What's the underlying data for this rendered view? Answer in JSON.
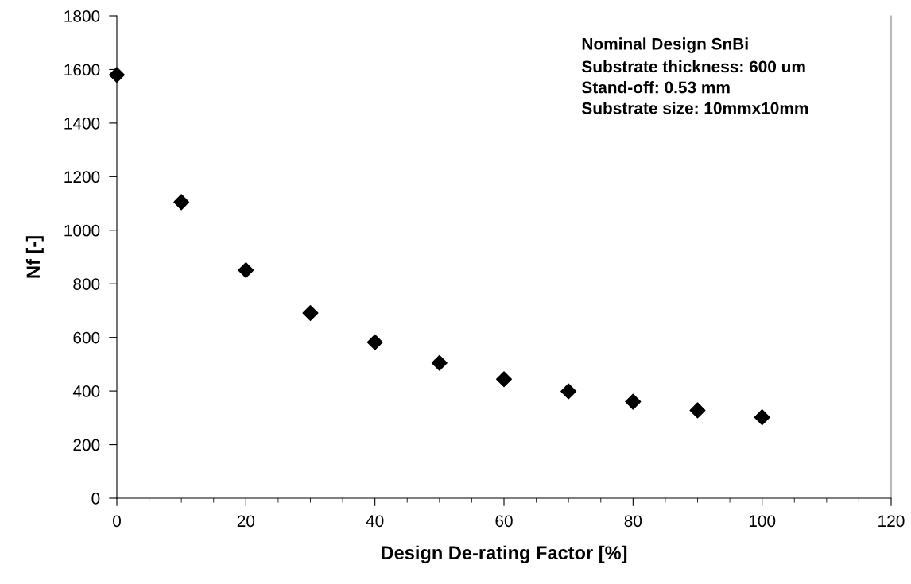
{
  "chart_data": {
    "type": "scatter",
    "xlabel": "Design De-rating Factor [%]",
    "ylabel": "Nf [-]",
    "x": [
      0,
      10,
      20,
      30,
      40,
      50,
      60,
      70,
      80,
      90,
      100
    ],
    "series": [
      {
        "color": "#000000",
        "values": [
          1580,
          1105,
          851,
          691,
          582,
          505,
          444,
          399,
          360,
          328,
          302
        ]
      }
    ],
    "xlim": [
      0,
      120
    ],
    "xticks": [
      0,
      20,
      40,
      60,
      80,
      100,
      120
    ],
    "ylim": [
      0,
      1800
    ],
    "yticks": [
      0,
      200,
      400,
      600,
      800,
      1000,
      1200,
      1400,
      1600,
      1800
    ],
    "marker": "diamond",
    "grid": false,
    "legend": false,
    "annotations": [
      "Nominal Design SnBi",
      "Substrate thickness: 600 um\nStand-off: 0.53 mm\nSubstrate size: 10mmx10mm"
    ]
  }
}
